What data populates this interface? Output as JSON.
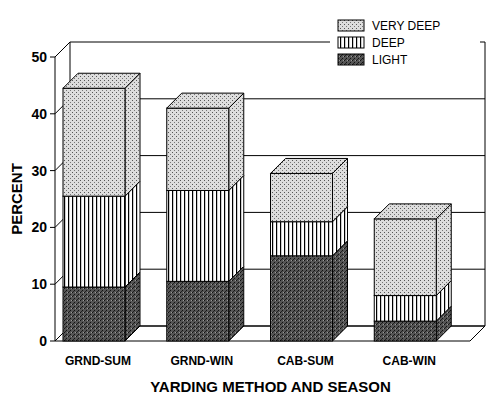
{
  "chart_data": {
    "type": "bar",
    "stacked": true,
    "grid": true,
    "legend": "top-right",
    "x_label": "YARDING METHOD AND SEASON",
    "y_label": "PERCENT",
    "categories": [
      "GRND-SUM",
      "GRND-WIN",
      "CAB-SUM",
      "CAB-WIN"
    ],
    "series": [
      {
        "name": "LIGHT",
        "color": "#555555",
        "values": [
          9.5,
          10.5,
          15,
          3.5
        ]
      },
      {
        "name": "DEEP",
        "color": "#ffffff",
        "values": [
          16,
          16,
          6,
          4.5
        ]
      },
      {
        "name": "VERY DEEP",
        "color": "#dddddd",
        "values": [
          19,
          14.5,
          8.5,
          13.5
        ]
      }
    ],
    "ylim": [
      0,
      50
    ],
    "yticks": [
      0,
      10,
      20,
      30,
      40,
      50
    ]
  }
}
